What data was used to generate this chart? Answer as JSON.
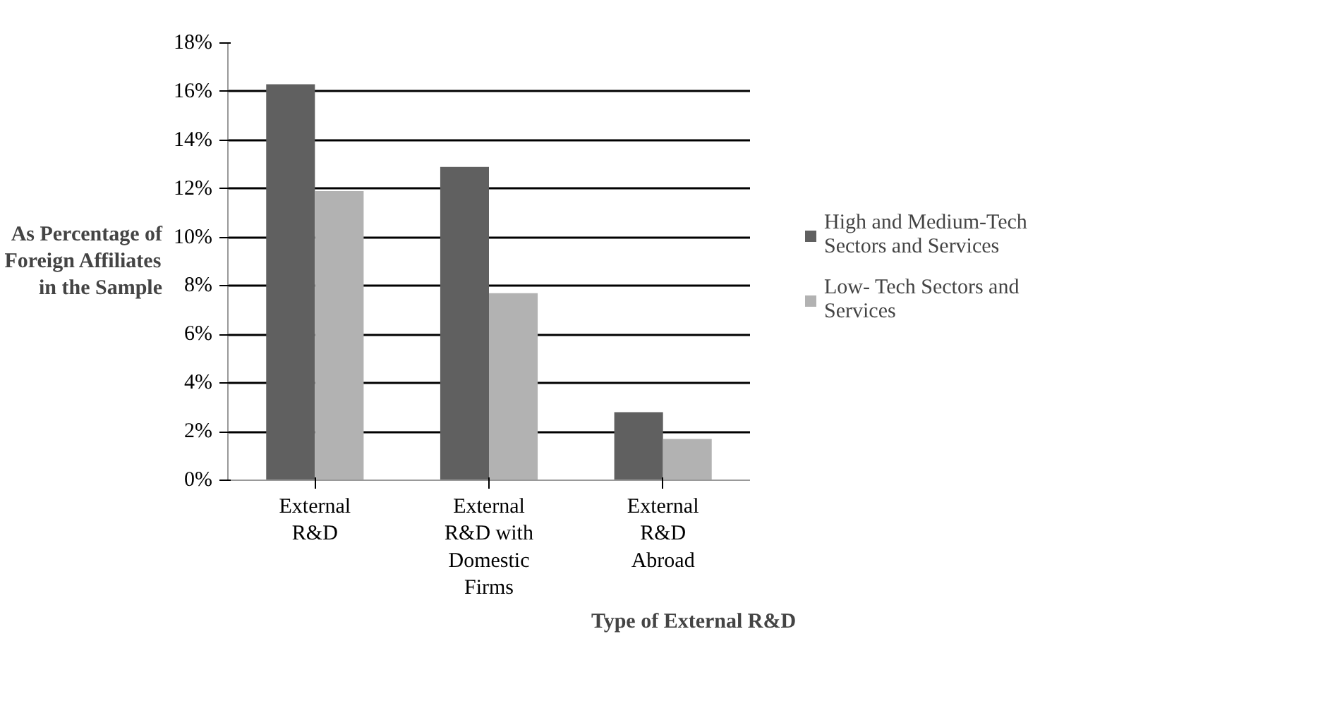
{
  "chart_data": {
    "type": "bar",
    "xlabel": "Type of External R&D",
    "ylabel": "As Percentage of Foreign Affiliates in the Sample",
    "categories": [
      "External R&D",
      "External R&D with Domestic Firms",
      "External R&D Abroad"
    ],
    "series": [
      {
        "name": "High and Medium-Tech Sectors and Services",
        "color": "#606060",
        "values": [
          16.3,
          12.9,
          2.8
        ]
      },
      {
        "name": "Low- Tech Sectors and Services",
        "color": "#b2b2b2",
        "values": [
          11.9,
          7.7,
          1.7
        ]
      }
    ],
    "ylim": [
      0,
      18
    ],
    "yticks": [
      {
        "value": 0,
        "label": "0%"
      },
      {
        "value": 2,
        "label": "2%"
      },
      {
        "value": 4,
        "label": "4%"
      },
      {
        "value": 6,
        "label": "6%"
      },
      {
        "value": 8,
        "label": "8%"
      },
      {
        "value": 10,
        "label": "10%"
      },
      {
        "value": 12,
        "label": "12%"
      },
      {
        "value": 14,
        "label": "14%"
      },
      {
        "value": 16,
        "label": "16%"
      },
      {
        "value": 18,
        "label": "18%"
      }
    ],
    "grid": "y",
    "legend": "right"
  }
}
